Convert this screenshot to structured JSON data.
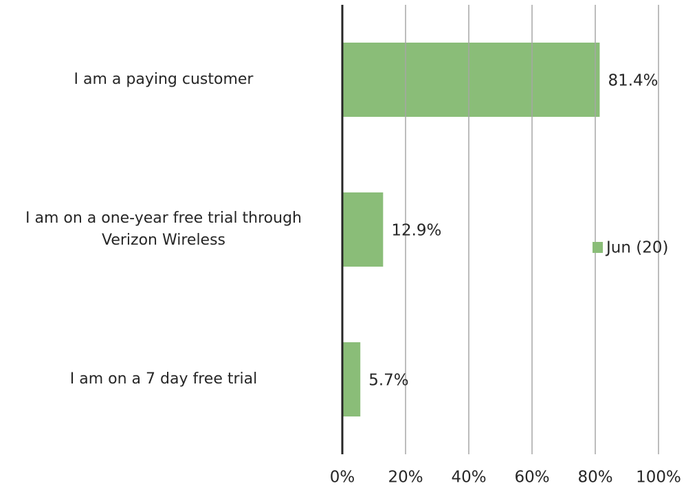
{
  "chart_data": {
    "type": "bar",
    "orientation": "horizontal",
    "categories": [
      "I am a paying customer",
      "I am on a one-year free trial through Verizon Wireless",
      "I am on a 7 day free trial"
    ],
    "series": [
      {
        "name": "Jun (20)",
        "color": "#8abd78",
        "values": [
          81.4,
          12.9,
          5.7
        ],
        "value_labels": [
          "81.4%",
          "12.9%",
          "5.7%"
        ]
      }
    ],
    "xlim": [
      0,
      100
    ],
    "xticks": [
      {
        "value": 0,
        "label": "0%"
      },
      {
        "value": 20,
        "label": "20%"
      },
      {
        "value": 40,
        "label": "40%"
      },
      {
        "value": 60,
        "label": "60%"
      },
      {
        "value": 80,
        "label": "80%"
      },
      {
        "value": 100,
        "label": "100%"
      }
    ],
    "grid": true,
    "legend": "right"
  }
}
